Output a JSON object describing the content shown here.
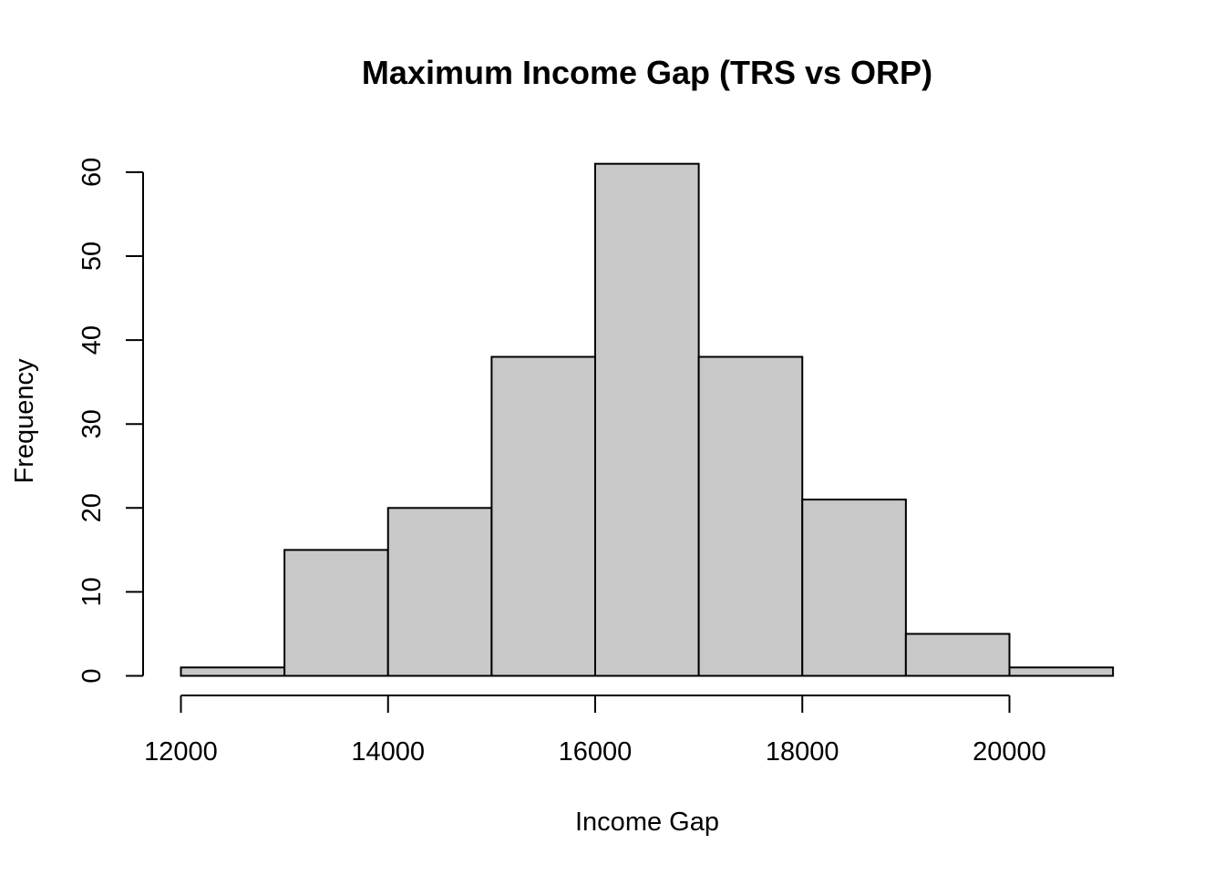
{
  "chart_data": {
    "type": "bar",
    "title": "Maximum Income Gap (TRS vs ORP)",
    "xlabel": "Income Gap",
    "ylabel": "Frequency",
    "bin_edges": [
      12000,
      13000,
      14000,
      15000,
      16000,
      17000,
      18000,
      19000,
      20000,
      21000
    ],
    "values": [
      1,
      15,
      20,
      38,
      61,
      38,
      21,
      5,
      1
    ],
    "x_ticks": [
      12000,
      14000,
      16000,
      18000,
      20000
    ],
    "y_ticks": [
      0,
      10,
      20,
      30,
      40,
      50,
      60
    ],
    "xlim": [
      12000,
      21000
    ],
    "ylim": [
      0,
      61
    ],
    "bar_color": "#c8c8c8",
    "edge_color": "#000000",
    "grid": false,
    "legend": "none"
  }
}
